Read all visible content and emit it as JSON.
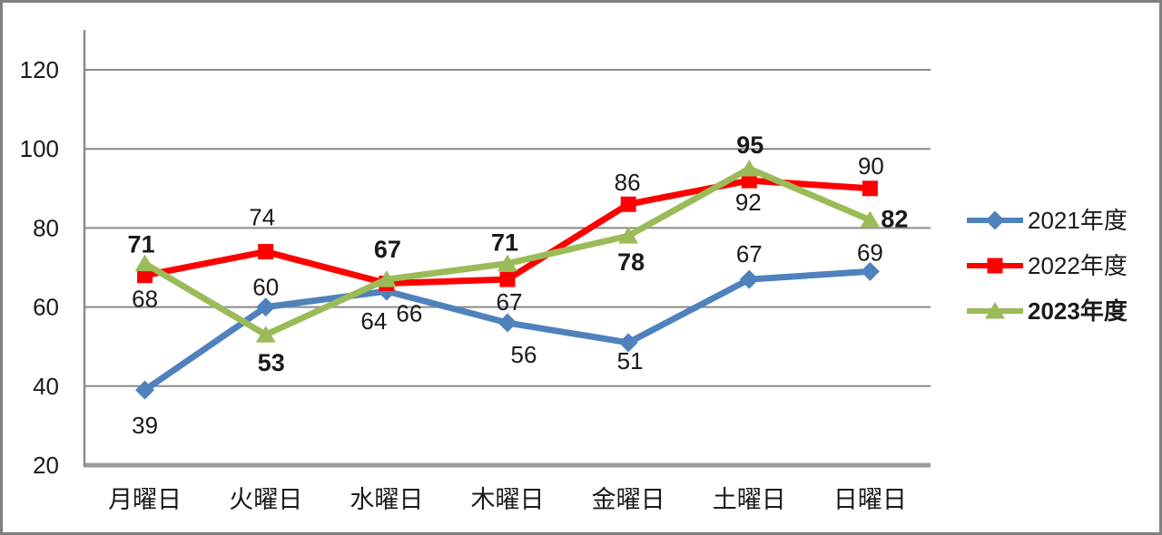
{
  "chart_data": {
    "type": "line",
    "title": "",
    "xlabel": "",
    "ylabel": "",
    "categories": [
      "月曜日",
      "火曜日",
      "水曜日",
      "木曜日",
      "金曜日",
      "土曜日",
      "日曜日"
    ],
    "series": [
      {
        "name": "2021年度",
        "color": "#4F81BD",
        "marker": "diamond",
        "bold_labels": false,
        "values": [
          39,
          60,
          64,
          56,
          51,
          67,
          69
        ],
        "label_offsets": [
          [
            0,
            48
          ],
          [
            0,
            -13
          ],
          [
            -14,
            42
          ],
          [
            18,
            44
          ],
          [
            2,
            29
          ],
          [
            0,
            -19
          ],
          [
            0,
            -12
          ]
        ]
      },
      {
        "name": "2022年度",
        "color": "#FF0000",
        "marker": "square",
        "bold_labels": false,
        "values": [
          68,
          74,
          66,
          67,
          86,
          92,
          90
        ],
        "label_offsets": [
          [
            0,
            35
          ],
          [
            -4,
            -29
          ],
          [
            25,
            42
          ],
          [
            2,
            34
          ],
          [
            -1,
            -15
          ],
          [
            -1,
            33
          ],
          [
            1,
            -16
          ]
        ]
      },
      {
        "name": "2023年度",
        "color": "#9BBB59",
        "marker": "triangle",
        "bold_labels": true,
        "values": [
          71,
          53,
          67,
          71,
          78,
          95,
          82
        ],
        "label_offsets": [
          [
            -4,
            -12
          ],
          [
            6,
            40
          ],
          [
            1,
            -24
          ],
          [
            -3,
            -14
          ],
          [
            3,
            38
          ],
          [
            1,
            -17
          ],
          [
            27,
            8
          ]
        ]
      }
    ],
    "yticks": [
      20,
      40,
      60,
      80,
      100,
      120
    ],
    "ylim": [
      20,
      120
    ],
    "grid": true,
    "legend_position": "right",
    "colors": {
      "gridline": "#8A8A8A",
      "axis_line": "#8A8A8A",
      "baseline": "#9B9B9B",
      "frame": "#7F7F7F",
      "label_text": "#1A1A1A"
    }
  }
}
